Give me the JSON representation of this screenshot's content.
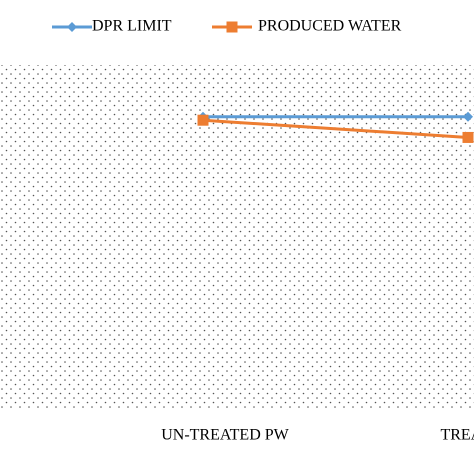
{
  "chart_data": {
    "type": "line",
    "categories": [
      "UN-TREATED PW",
      "TREATED PW"
    ],
    "series": [
      {
        "name": "DPR LIMIT",
        "color": "#5b9bd5",
        "marker": "diamond",
        "values": [
          85,
          85
        ]
      },
      {
        "name": "PRODUCED WATER",
        "color": "#ed7d31",
        "marker": "square",
        "values": [
          84,
          79
        ]
      }
    ],
    "ylim": [
      0,
      100
    ],
    "legend": "top"
  }
}
